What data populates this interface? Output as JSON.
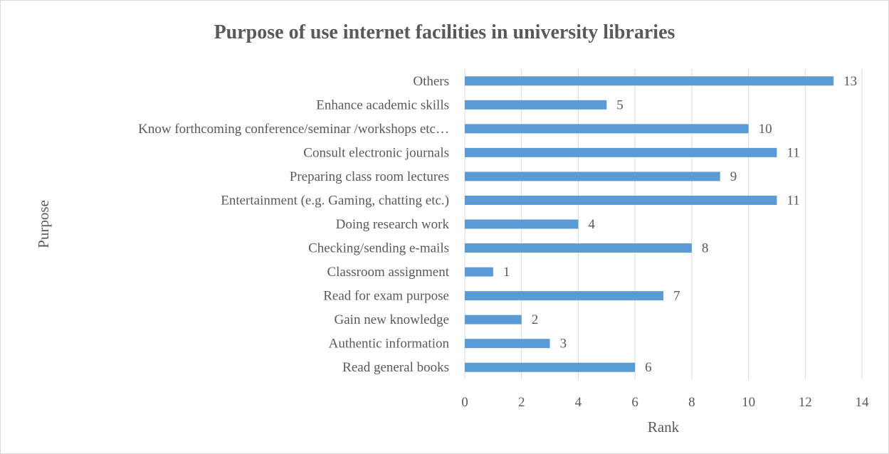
{
  "chart_data": {
    "type": "bar",
    "orientation": "horizontal",
    "title": "Purpose of use internet facilities in university libraries",
    "xlabel": "Rank",
    "ylabel": "Purpose",
    "categories": [
      "Read general books",
      "Authentic information",
      "Gain new knowledge",
      "Read for exam purpose",
      "Classroom assignment",
      "Checking/sending e-mails",
      "Doing research work",
      "Entertainment (e.g. Gaming, chatting etc.)",
      "Preparing class room lectures",
      "Consult electronic journals",
      "Know forthcoming conference/seminar /workshops etc…",
      "Enhance academic skills",
      "Others"
    ],
    "values": [
      6,
      3,
      2,
      7,
      1,
      8,
      4,
      11,
      9,
      11,
      10,
      5,
      13
    ],
    "xlim": [
      0,
      14
    ],
    "xticks": [
      "0",
      "2",
      "4",
      "6",
      "8",
      "10",
      "12",
      "14"
    ],
    "grid": true,
    "legend": "none",
    "bar_color": "#5b9bd5",
    "grid_color": "#d9d9d9",
    "text_color": "#595959"
  }
}
